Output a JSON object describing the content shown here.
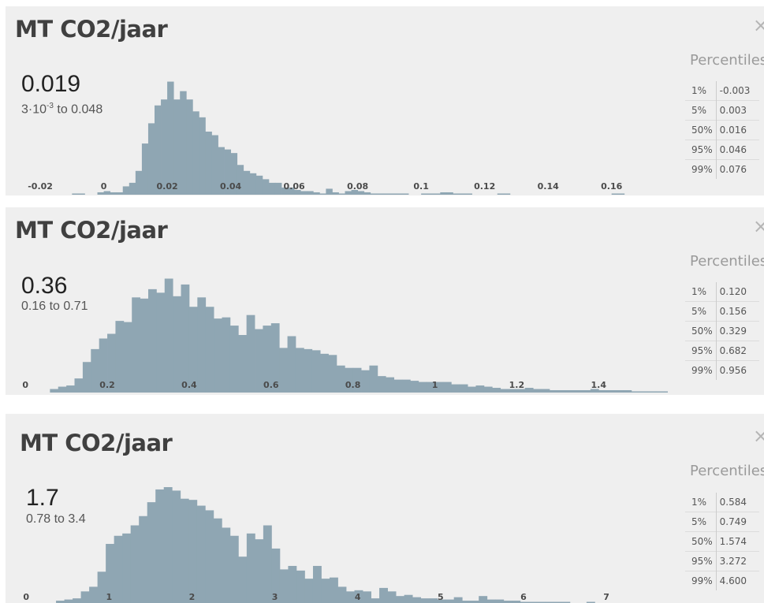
{
  "panels": [
    {
      "title": "MT CO2/jaar",
      "close_label": "×",
      "mean_text": "0.019",
      "range_text": {
        "base": "3·10",
        "exp": "-3",
        "rest": " to 0.048"
      },
      "percentiles_title": "Percentiles",
      "percentiles": [
        {
          "label": "1%",
          "value": "-0.003"
        },
        {
          "label": "5%",
          "value": "0.003"
        },
        {
          "label": "50%",
          "value": "0.016"
        },
        {
          "label": "95%",
          "value": "0.046"
        },
        {
          "label": "99%",
          "value": "0.076"
        }
      ]
    },
    {
      "title": "MT CO2/jaar",
      "close_label": "×",
      "mean_text": "0.36",
      "range_text": {
        "base": "0.16 to 0.71",
        "exp": "",
        "rest": ""
      },
      "percentiles_title": "Percentiles",
      "percentiles": [
        {
          "label": "1%",
          "value": "0.120"
        },
        {
          "label": "5%",
          "value": "0.156"
        },
        {
          "label": "50%",
          "value": "0.329"
        },
        {
          "label": "95%",
          "value": "0.682"
        },
        {
          "label": "99%",
          "value": "0.956"
        }
      ]
    },
    {
      "title": "MT CO2/jaar",
      "close_label": "×",
      "mean_text": "1.7",
      "range_text": {
        "base": "0.78 to 3.4",
        "exp": "",
        "rest": ""
      },
      "percentiles_title": "Percentiles",
      "percentiles": [
        {
          "label": "1%",
          "value": "0.584"
        },
        {
          "label": "5%",
          "value": "0.749"
        },
        {
          "label": "50%",
          "value": "1.574"
        },
        {
          "label": "95%",
          "value": "3.272"
        },
        {
          "label": "99%",
          "value": "4.600"
        }
      ]
    }
  ],
  "chart_data": [
    {
      "type": "bar",
      "title": "MT CO2/jaar",
      "bar_color": "#8fa6b3",
      "xlim": [
        -0.023,
        0.172
      ],
      "ylim": [
        0,
        100
      ],
      "ticks": [
        "-0.02",
        "0",
        "0.02",
        "0.04",
        "0.06",
        "0.08",
        "0.1",
        "0.12",
        "0.14",
        "0.16"
      ],
      "tick_values": [
        -0.02,
        0,
        0.02,
        0.04,
        0.06,
        0.08,
        0.1,
        0.12,
        0.14,
        0.16
      ],
      "bin_start": -0.02,
      "bin_width": 0.002,
      "values": [
        0,
        0,
        0,
        0,
        0,
        1,
        1,
        0,
        0,
        2,
        3,
        2,
        2,
        7,
        10,
        20,
        43,
        60,
        75,
        80,
        95,
        80,
        87,
        80,
        70,
        65,
        53,
        50,
        40,
        38,
        35,
        25,
        20,
        18,
        16,
        13,
        10,
        10,
        6,
        6,
        4,
        3,
        3,
        2,
        1,
        5,
        2,
        1,
        3,
        4,
        3,
        2,
        1,
        1,
        1,
        1,
        1,
        1,
        0,
        0,
        1,
        1,
        1,
        2,
        2,
        1,
        1,
        1,
        0,
        0,
        0,
        0,
        1,
        1,
        0,
        0,
        0,
        0,
        0,
        0,
        0,
        0,
        0,
        0,
        0,
        0,
        0,
        0,
        0,
        0,
        1,
        1,
        0,
        0,
        0
      ]
    },
    {
      "type": "bar",
      "title": "MT CO2/jaar",
      "bar_color": "#8fa6b3",
      "xlim": [
        -0.01,
        1.515
      ],
      "ylim": [
        0,
        100
      ],
      "ticks": [
        "0",
        "0.2",
        "0.4",
        "0.6",
        "0.8",
        "1",
        "1.2",
        "1.4"
      ],
      "tick_values": [
        0,
        0.2,
        0.4,
        0.6,
        0.8,
        1.0,
        1.2,
        1.4
      ],
      "bin_start": 0.06,
      "bin_width": 0.02,
      "values": [
        3,
        5,
        6,
        12,
        26,
        37,
        46,
        50,
        61,
        60,
        81,
        80,
        88,
        85,
        97,
        82,
        92,
        73,
        81,
        73,
        63,
        64,
        57,
        49,
        66,
        54,
        57,
        59,
        38,
        48,
        38,
        37,
        36,
        33,
        32,
        23,
        21,
        21,
        19,
        23,
        14,
        13,
        11,
        11,
        10,
        9,
        9,
        9,
        9,
        7,
        7,
        5,
        6,
        5,
        4,
        3,
        3,
        3,
        4,
        3,
        3,
        2,
        2,
        2,
        2,
        2,
        3,
        2,
        2,
        2,
        2,
        1,
        1,
        1,
        1,
        1,
        1,
        1,
        1,
        0,
        1,
        1,
        1,
        1,
        0,
        0,
        1,
        1
      ]
    },
    {
      "type": "bar",
      "title": "MT CO2/jaar",
      "bar_color": "#8fa6b3",
      "xlim": [
        -0.04,
        7.56
      ],
      "ylim": [
        0,
        100
      ],
      "ticks": [
        "0",
        "1",
        "2",
        "3",
        "4",
        "5",
        "6",
        "7"
      ],
      "tick_values": [
        0,
        1,
        2,
        3,
        4,
        5,
        6,
        7
      ],
      "bin_start": 0.36,
      "bin_width": 0.1,
      "values": [
        2,
        3,
        4,
        10,
        14,
        27,
        51,
        58,
        60,
        67,
        75,
        87,
        98,
        100,
        97,
        90,
        89,
        84,
        80,
        73,
        65,
        58,
        40,
        60,
        55,
        67,
        47,
        29,
        32,
        28,
        21,
        32,
        21,
        22,
        14,
        10,
        11,
        10,
        4,
        13,
        10,
        6,
        7,
        5,
        4,
        4,
        3,
        3,
        5,
        2,
        2,
        6,
        3,
        3,
        2,
        2,
        1,
        1,
        1,
        1,
        1,
        1,
        0,
        0,
        1
      ]
    }
  ]
}
